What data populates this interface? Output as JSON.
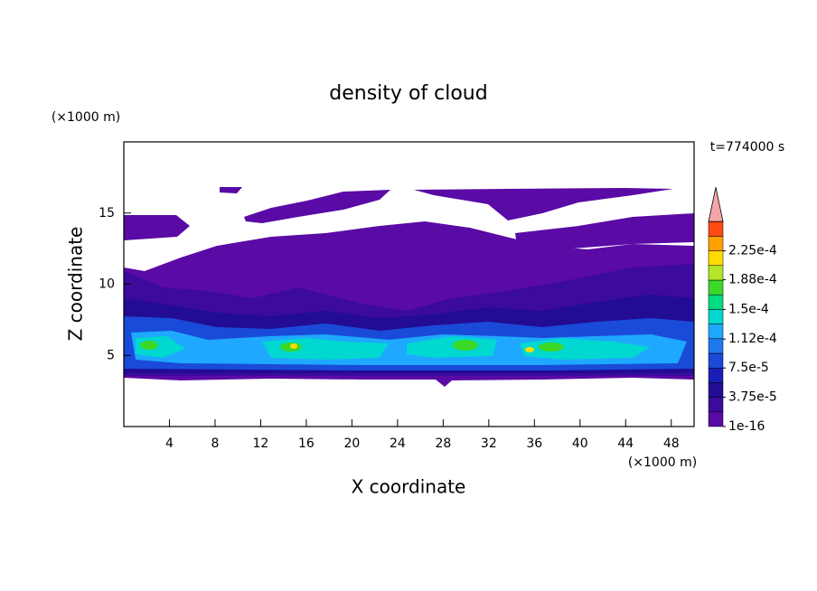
{
  "chart_data": {
    "type": "contour",
    "title": "density of cloud",
    "xlabel": "X coordinate",
    "ylabel": "Z coordinate",
    "x_unit": "(×1000 m)",
    "y_unit": "(×1000 m)",
    "annotation": "t=774000 s",
    "xlim": [
      0,
      50
    ],
    "ylim": [
      0,
      20
    ],
    "xticks": [
      4,
      8,
      12,
      16,
      20,
      24,
      28,
      32,
      36,
      40,
      44,
      48
    ],
    "yticks": [
      5,
      10,
      15
    ],
    "colorbar": {
      "clim": [
        0,
        0.0002625
      ],
      "extend": "max",
      "extend_color": "#f4a6a6",
      "colors": [
        "#5a0aa5",
        "#3c0a9c",
        "#220c94",
        "#1a1eb8",
        "#1a4ad8",
        "#1e78f0",
        "#1ea8ff",
        "#00d8d0",
        "#00dc82",
        "#3cd828",
        "#b4e628",
        "#ffdc00",
        "#ffa000",
        "#ff4a14"
      ],
      "ticks": [
        {
          "value": 1e-16,
          "label": "1e-16"
        },
        {
          "value": 3.75e-05,
          "label": "3.75e-5"
        },
        {
          "value": 7.5e-05,
          "label": "7.5e-5"
        },
        {
          "value": 0.000112,
          "label": "1.12e-4"
        },
        {
          "value": 0.00015,
          "label": "1.5e-4"
        },
        {
          "value": 0.000188,
          "label": "1.88e-4"
        },
        {
          "value": 0.000225,
          "label": "2.25e-4"
        }
      ]
    }
  }
}
